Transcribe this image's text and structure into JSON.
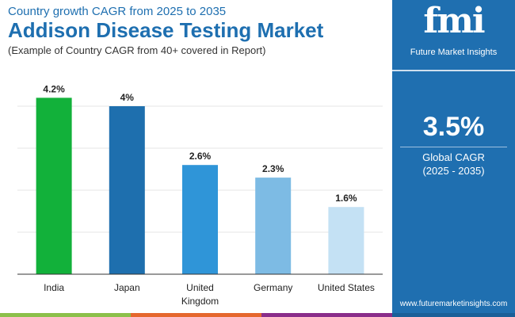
{
  "header": {
    "subtitle": "Country growth CAGR from 2025 to 2035",
    "title": "Addison Disease Testing Market",
    "note": "(Example of Country CAGR from 40+ covered in Report)"
  },
  "panel": {
    "logo": "fmi",
    "logo_text": "Future Market Insights",
    "cagr": "3.5%",
    "cagr_label": "Global CAGR",
    "cagr_period": "(2025 - 2035)",
    "url": "www.futuremarketinsights.com"
  },
  "chart_data": {
    "type": "bar",
    "categories": [
      "India",
      "Japan",
      "United Kingdom",
      "Germany",
      "United States"
    ],
    "values": [
      4.2,
      4,
      2.6,
      2.3,
      1.6
    ],
    "labels": [
      "4.2%",
      "4%",
      "2.6%",
      "2.3%",
      "1.6%"
    ],
    "colors": [
      "#12b13a",
      "#1e6fae",
      "#2f95d8",
      "#7dbbe4",
      "#c4e1f4"
    ],
    "ylim": [
      0,
      4.2
    ],
    "grid": true
  }
}
